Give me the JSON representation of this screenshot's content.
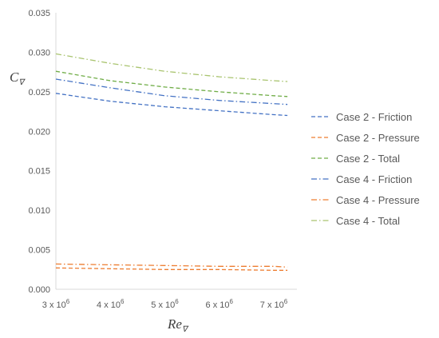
{
  "chart_data": {
    "type": "line",
    "title": "",
    "xlabel": "Re",
    "xlabel_sub": "∇",
    "ylabel": "C",
    "ylabel_sub": "∇",
    "xlim": [
      3000000,
      7300000
    ],
    "ylim": [
      0,
      0.035
    ],
    "x_ticks": [
      3000000,
      4000000,
      5000000,
      6000000,
      7000000
    ],
    "x_tick_labels": [
      {
        "mant": "3 x 10",
        "exp": "6"
      },
      {
        "mant": "4 x 10",
        "exp": "6"
      },
      {
        "mant": "5 x 10",
        "exp": "6"
      },
      {
        "mant": "6 x 10",
        "exp": "6"
      },
      {
        "mant": "7 x 10",
        "exp": "6"
      }
    ],
    "y_ticks": [
      0,
      0.005,
      0.01,
      0.015,
      0.02,
      0.025,
      0.03,
      0.035
    ],
    "y_tick_labels": [
      "0.000",
      "0.005",
      "0.010",
      "0.015",
      "0.020",
      "0.025",
      "0.030",
      "0.035"
    ],
    "grid": false,
    "legend_position": "right",
    "x": [
      3000000,
      4000000,
      5000000,
      6000000,
      7000000,
      7250000
    ],
    "series": [
      {
        "name": "Case 2 - Friction",
        "color": "#4472C4",
        "dash": "dashed",
        "values": [
          0.0248,
          0.0238,
          0.0231,
          0.0226,
          0.0221,
          0.022
        ]
      },
      {
        "name": "Case 2 - Pressure",
        "color": "#ED7D31",
        "dash": "dashed",
        "values": [
          0.0027,
          0.0026,
          0.0025,
          0.0025,
          0.0024,
          0.0024
        ]
      },
      {
        "name": "Case 2 - Total",
        "color": "#70AD47",
        "dash": "dashed",
        "values": [
          0.0276,
          0.0264,
          0.0256,
          0.025,
          0.0245,
          0.0244
        ]
      },
      {
        "name": "Case 4 - Friction",
        "color": "#4472C4",
        "dash": "dashdot",
        "values": [
          0.0266,
          0.0255,
          0.0245,
          0.0239,
          0.0235,
          0.0234
        ]
      },
      {
        "name": "Case 4 - Pressure",
        "color": "#ED7D31",
        "dash": "dashdot",
        "values": [
          0.0032,
          0.0031,
          0.003,
          0.0029,
          0.0029,
          0.0028
        ]
      },
      {
        "name": "Case 4 - Total",
        "color": "#A9C46F",
        "dash": "dashdot",
        "values": [
          0.0298,
          0.0286,
          0.0276,
          0.0269,
          0.0264,
          0.0263
        ]
      }
    ]
  }
}
